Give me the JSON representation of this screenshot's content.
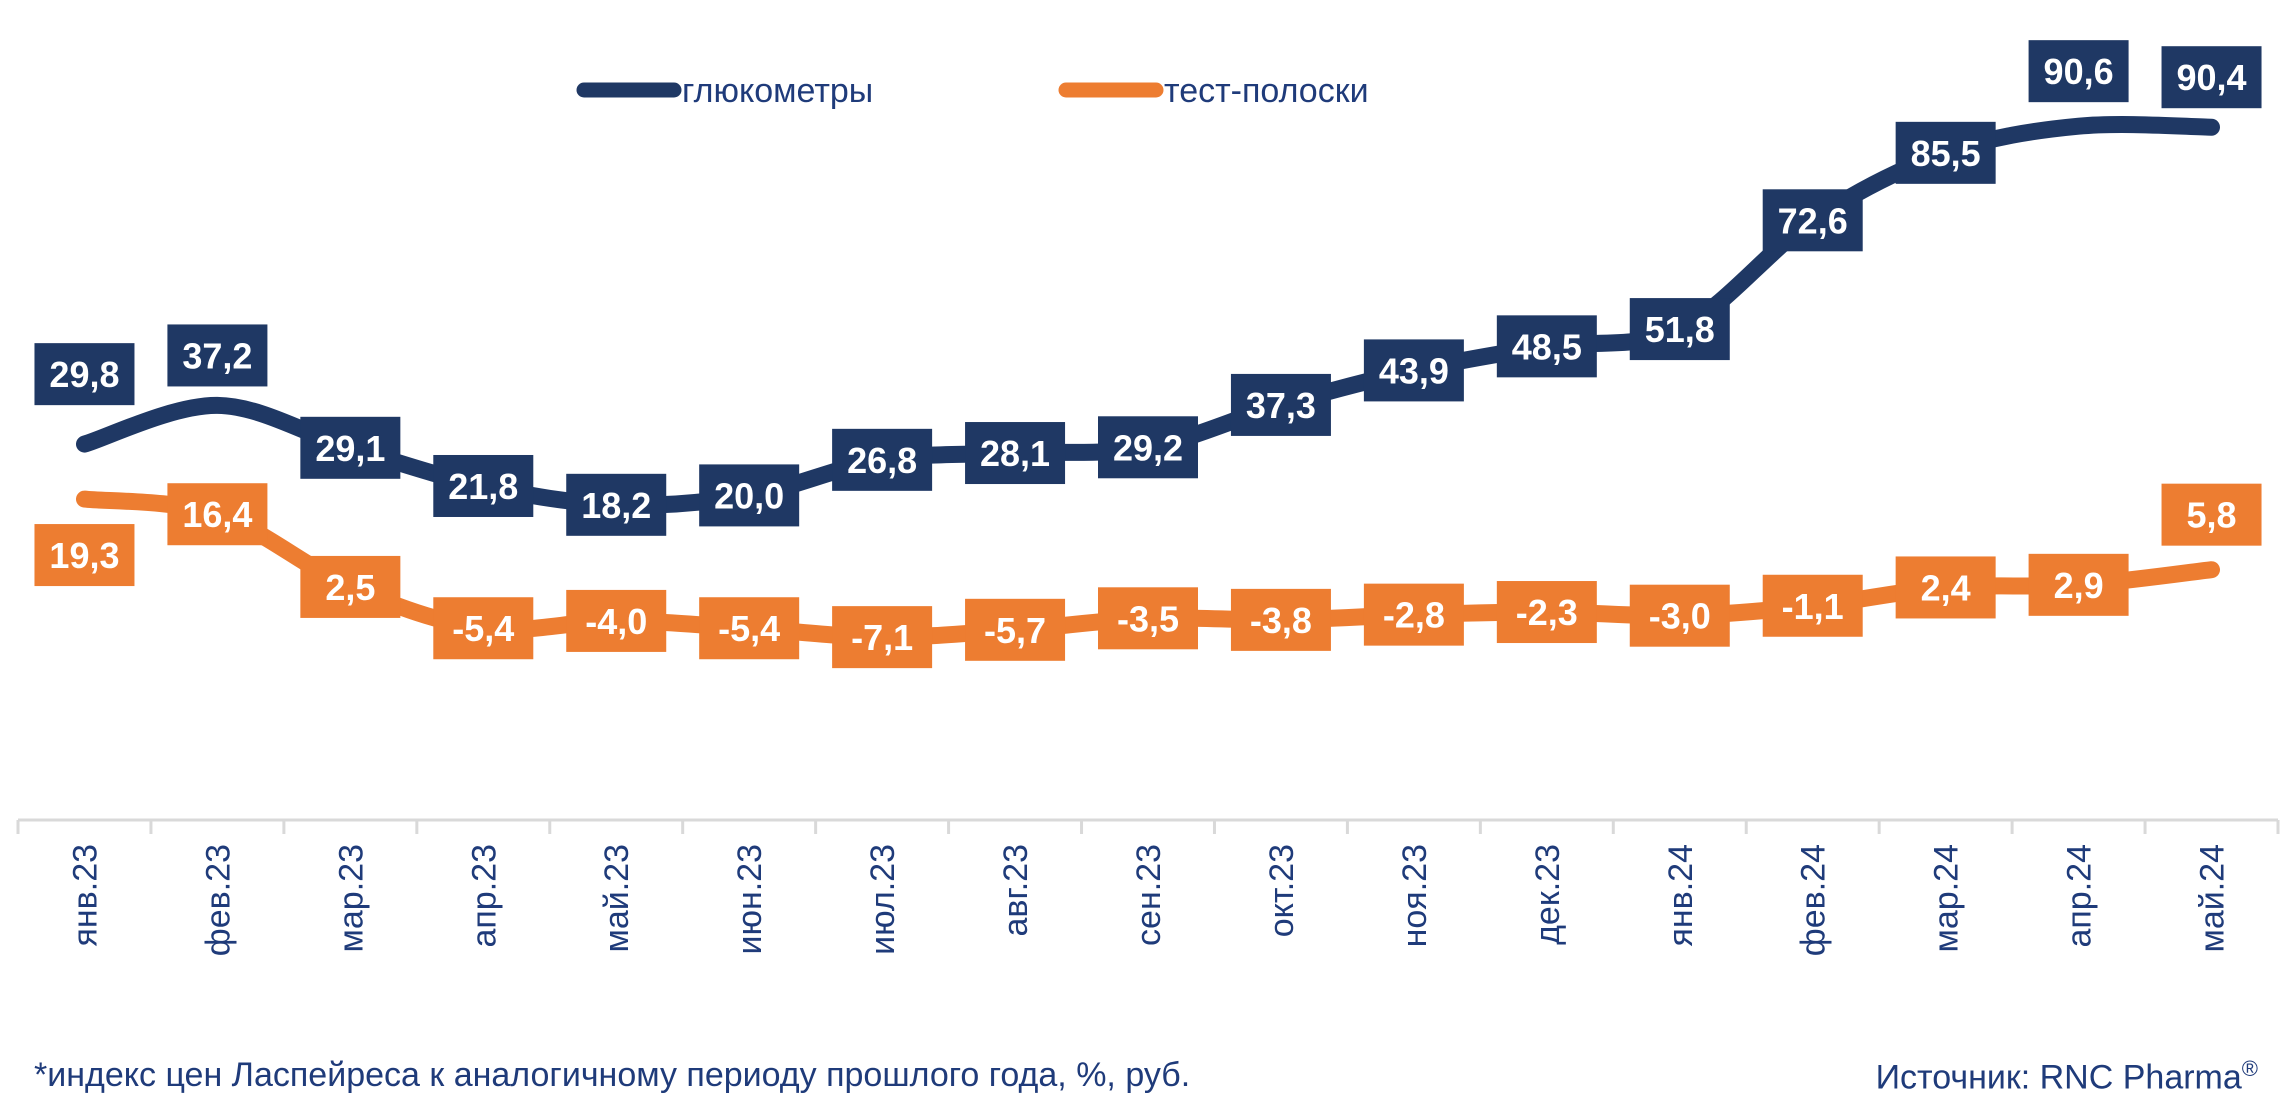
{
  "chart_data": {
    "type": "line",
    "categories": [
      "янв.23",
      "фев.23",
      "мар.23",
      "апр.23",
      "май.23",
      "июн.23",
      "июл.23",
      "авг.23",
      "сен.23",
      "окт.23",
      "ноя.23",
      "дек.23",
      "янв.24",
      "фев.24",
      "мар.24",
      "апр.24",
      "май.24"
    ],
    "series": [
      {
        "name": "глюкометры",
        "color": "#1f3864",
        "values": [
          29.8,
          37.2,
          29.1,
          21.8,
          18.2,
          20.0,
          26.8,
          28.1,
          29.2,
          37.3,
          43.9,
          48.5,
          51.8,
          72.6,
          85.5,
          90.6,
          90.4
        ],
        "labels": [
          "29,8",
          "37,2",
          "29,1",
          "21,8",
          "18,2",
          "20,0",
          "26,8",
          "28,1",
          "29,2",
          "37,3",
          "43,9",
          "48,5",
          "51,8",
          "72,6",
          "85,5",
          "90,6",
          "90,4"
        ]
      },
      {
        "name": "тест-полоски",
        "color": "#ed7d31",
        "values": [
          19.3,
          16.4,
          2.5,
          -5.4,
          -4.0,
          -5.4,
          -7.1,
          -5.7,
          -3.5,
          -3.8,
          -2.8,
          -2.3,
          -3.0,
          -1.1,
          2.4,
          2.9,
          5.8
        ],
        "labels": [
          "19,3",
          "16,4",
          "2,5",
          "-5,4",
          "-4,0",
          "-5,4",
          "-7,1",
          "-5,7",
          "-3,5",
          "-3,8",
          "-2,8",
          "-2,3",
          "-3,0",
          "-1,1",
          "2,4",
          "2,9",
          "5,8"
        ]
      }
    ],
    "legend_position": "top-center",
    "grid": false
  },
  "footer": {
    "footnote": "*индекс цен Ласпейреса к аналогичному периоду прошлого года, %, руб.",
    "source": "Источник: RNC Pharma",
    "source_mark": "®"
  }
}
